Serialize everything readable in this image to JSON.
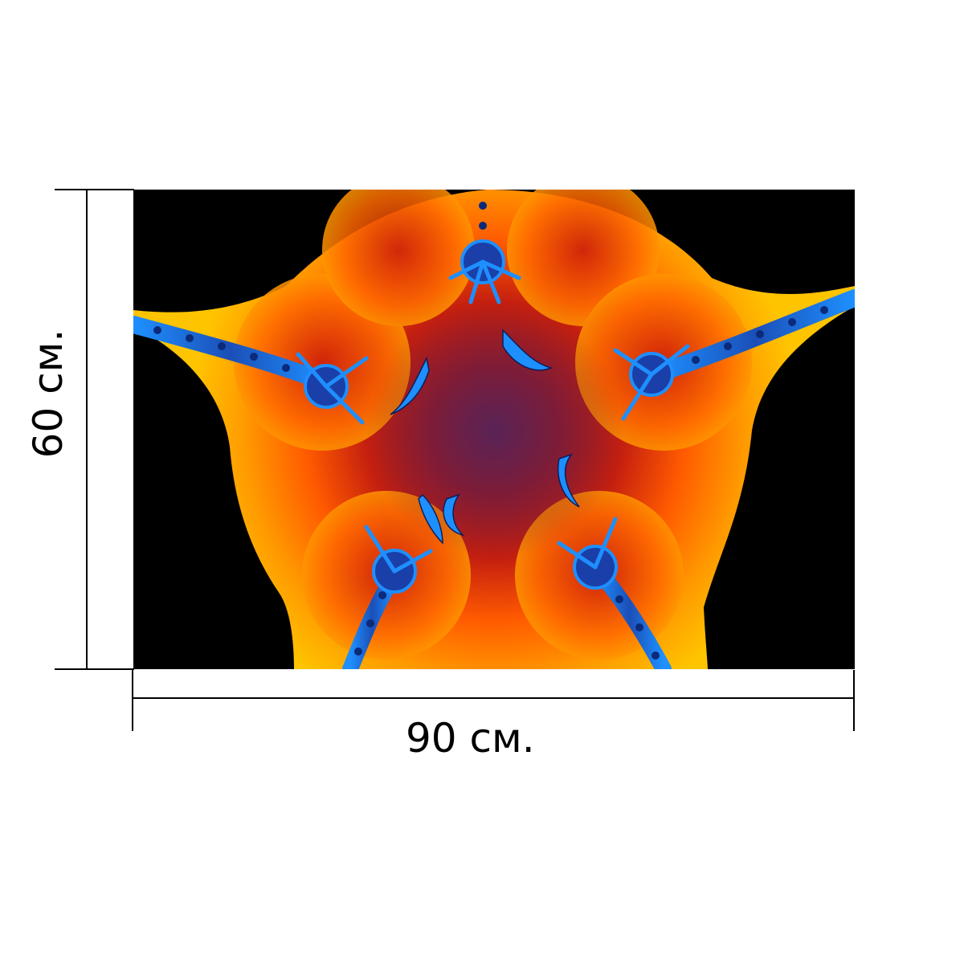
{
  "dimensions": {
    "width_label": "90 см.",
    "height_label": "60 см."
  },
  "artwork": {
    "background_color": "#000000",
    "colors": {
      "outer_orange": "#ffb000",
      "mid_orange": "#ff6a00",
      "deep_red": "#b81a12",
      "core_purple": "#6a1f4d",
      "fractal_blue": "#1e8fff",
      "deep_blue": "#1b3fa8"
    },
    "icon": "fractal-star-image"
  }
}
